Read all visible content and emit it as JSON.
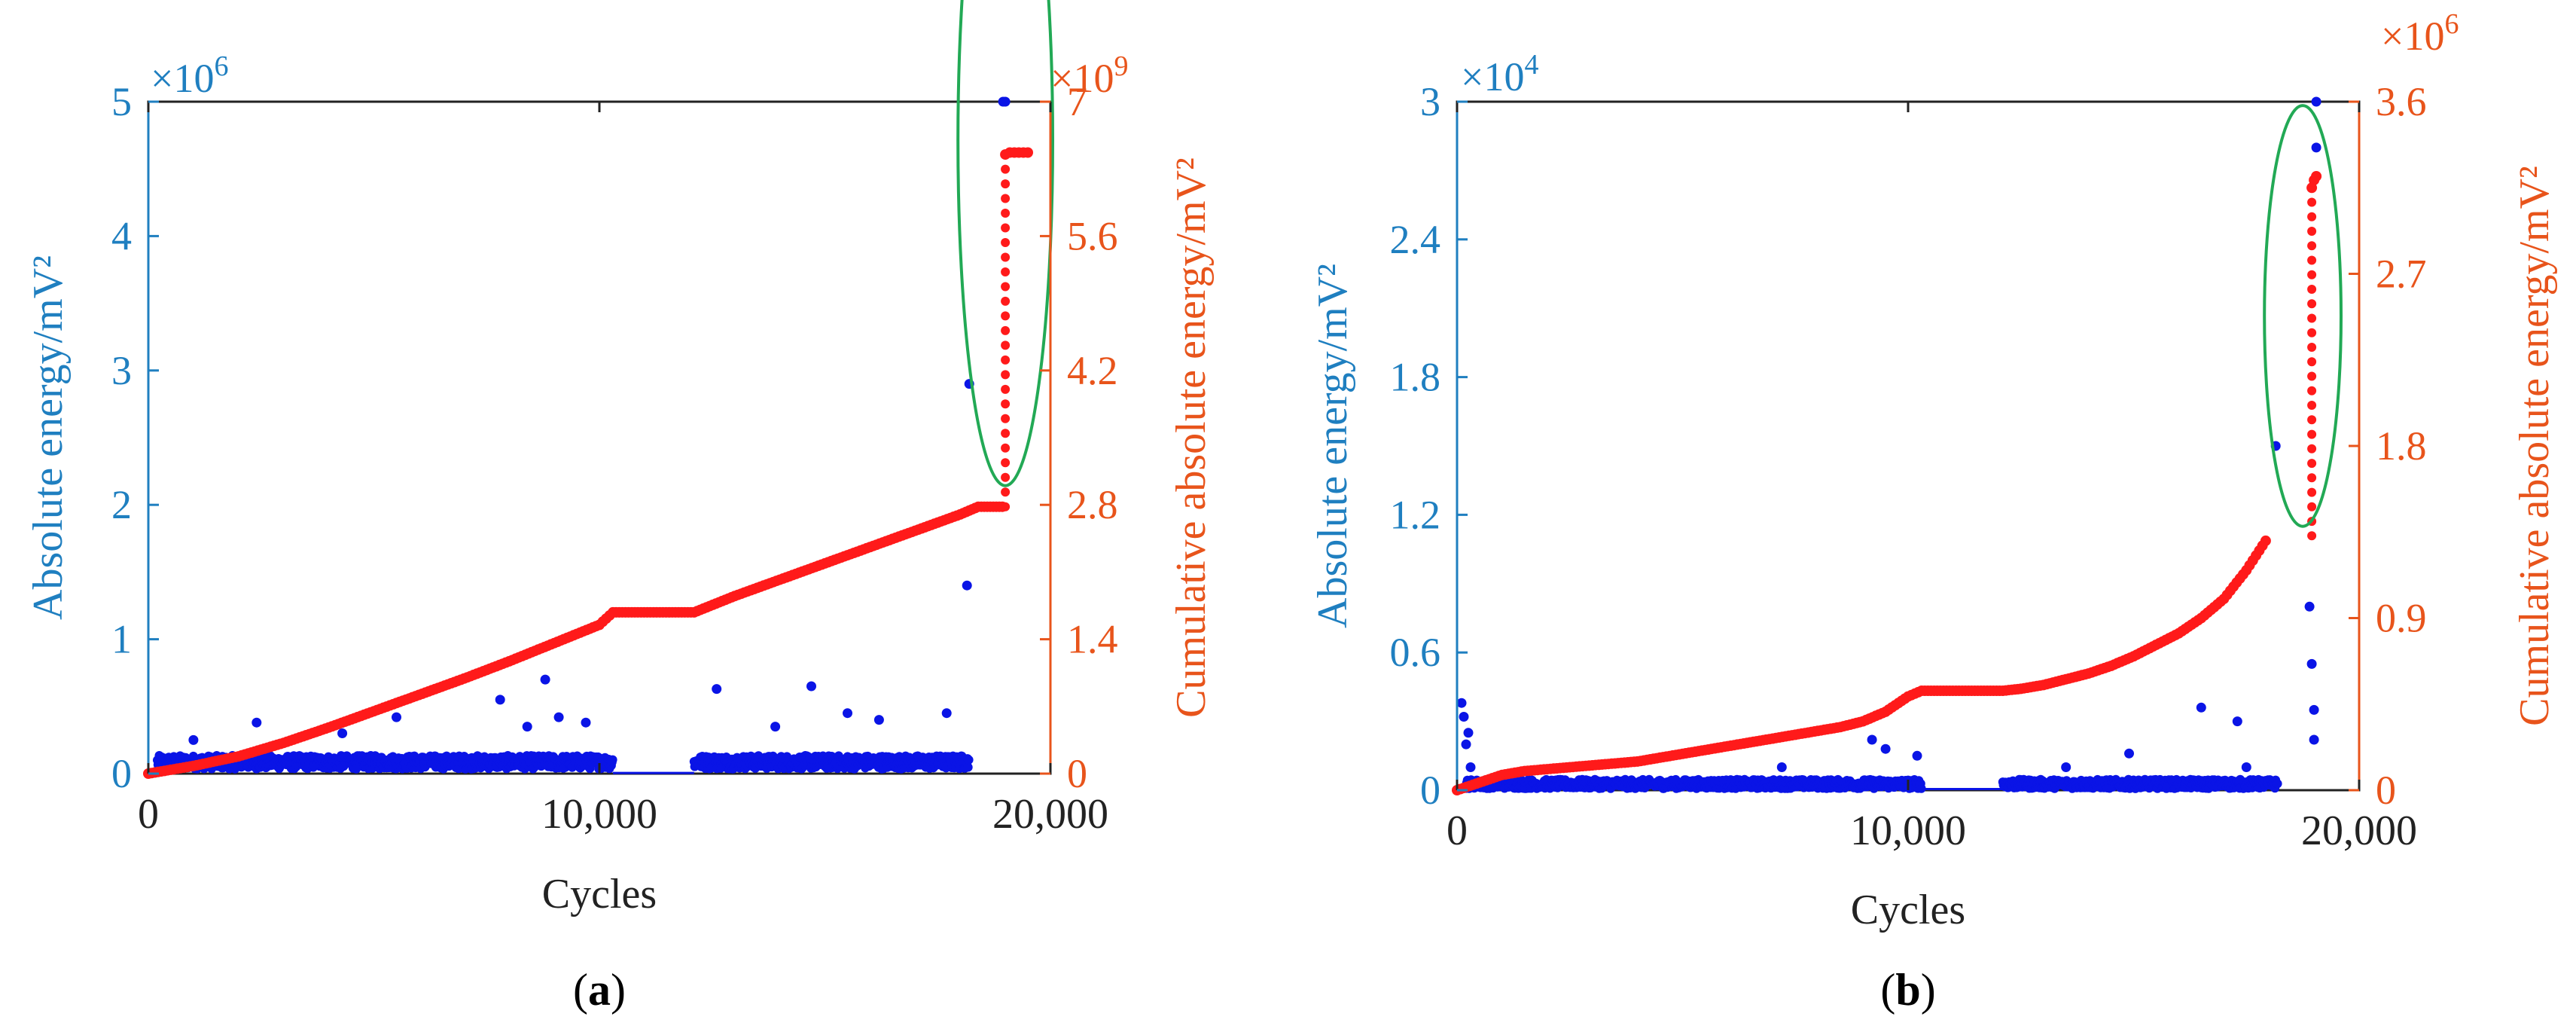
{
  "colors": {
    "left_axis": "#1f7fc0",
    "right_axis": "#e8541b",
    "scatter": "#0a14e6",
    "cumulative": "#ff1a1a",
    "ellipse": "#22a955",
    "axis_line": "#222222"
  },
  "chart_data": [
    {
      "type": "scatter",
      "panel_label": "(a)",
      "panel_letter": "a",
      "xlabel": "Cycles",
      "ylabel_left": "Absolute energy/mV²",
      "ylabel_right": "Cumulative absolute energy/mV²",
      "left_multiplier_base": "×10",
      "left_multiplier_exp": "6",
      "right_multiplier_base": "×10",
      "right_multiplier_exp": "9",
      "xlim": [
        0,
        20000
      ],
      "xticks": [
        0,
        10000,
        20000
      ],
      "xtick_labels": [
        "0",
        "10,000",
        "20,000"
      ],
      "ylim_left": [
        0,
        5
      ],
      "yticks_left": [
        0,
        1,
        2,
        3,
        4,
        5
      ],
      "ytick_labels_left": [
        "0",
        "1",
        "2",
        "3",
        "4",
        "5"
      ],
      "ylim_right": [
        0,
        7
      ],
      "yticks_right": [
        0,
        1.4,
        2.8,
        4.2,
        5.6,
        7
      ],
      "ytick_labels_right": [
        "0",
        "1.4",
        "2.8",
        "4.2",
        "5.6",
        "7"
      ],
      "baseline_band": {
        "x_from": 200,
        "x_to": 18200,
        "gap_from": 10300,
        "gap_to": 12100,
        "level": 0.1,
        "spread": 0.1
      },
      "scatter_outliers": {
        "x": [
          1000,
          2400,
          4300,
          5500,
          7800,
          8400,
          8800,
          9100,
          9700,
          12600,
          13900,
          14700,
          15500,
          16200,
          17700,
          18150,
          18200,
          18950,
          19000
        ],
        "y": [
          0.25,
          0.38,
          0.3,
          0.42,
          0.55,
          0.35,
          0.7,
          0.42,
          0.38,
          0.63,
          0.35,
          0.65,
          0.45,
          0.4,
          0.45,
          1.4,
          2.9,
          5.0,
          5.0
        ]
      },
      "cumulative": {
        "x": [
          0,
          1000,
          2000,
          3000,
          4000,
          5000,
          6000,
          7000,
          8000,
          9000,
          10000,
          10300,
          12100,
          13000,
          14000,
          15000,
          16000,
          17000,
          18000,
          18400,
          19000
        ],
        "y": [
          0,
          0.08,
          0.18,
          0.32,
          0.48,
          0.65,
          0.82,
          0.99,
          1.17,
          1.36,
          1.55,
          1.68,
          1.68,
          1.85,
          2.02,
          2.19,
          2.36,
          2.53,
          2.7,
          2.78,
          2.78
        ]
      },
      "cumulative_jump": {
        "x": 19000,
        "from": 2.78,
        "to": 6.45,
        "points": 24
      },
      "cumulative_top": {
        "x": [
          19000,
          19100,
          19200,
          19300,
          19400,
          19500
        ],
        "y": [
          6.45,
          6.47,
          6.47,
          6.47,
          6.47,
          6.47
        ]
      },
      "highlight_ellipse": {
        "x_center": 19000,
        "x_radius": 1050,
        "y_center": 6.6,
        "y_radius": 7.2,
        "axis": "right"
      }
    },
    {
      "type": "scatter",
      "panel_label": "(b)",
      "panel_letter": "b",
      "xlabel": "Cycles",
      "ylabel_left": "Absolute energy/mV²",
      "ylabel_right": "Cumulative absolute energy/mV²",
      "left_multiplier_base": "×10",
      "left_multiplier_exp": "4",
      "right_multiplier_base": "×10",
      "right_multiplier_exp": "6",
      "xlim": [
        0,
        20000
      ],
      "xticks": [
        0,
        10000,
        20000
      ],
      "xtick_labels": [
        "0",
        "10,000",
        "20,000"
      ],
      "ylim_left": [
        0,
        3
      ],
      "yticks_left": [
        0,
        0.6,
        1.2,
        1.8,
        2.4,
        3
      ],
      "ytick_labels_left": [
        "0",
        "0.6",
        "1.2",
        "1.8",
        "2.4",
        "3"
      ],
      "ylim_right": [
        0,
        3.6
      ],
      "yticks_right": [
        0,
        0.9,
        1.8,
        2.7,
        3.6
      ],
      "ytick_labels_right": [
        "0",
        "0.9",
        "1.8",
        "2.7",
        "3.6"
      ],
      "baseline_band": {
        "x_from": 200,
        "x_to": 18200,
        "gap_from": 10300,
        "gap_to": 12100,
        "level": 0.02,
        "spread": 0.04
      },
      "scatter_outliers": {
        "x": [
          100,
          150,
          200,
          250,
          300,
          7200,
          9200,
          9500,
          10200,
          13500,
          14900,
          16500,
          17300,
          17500,
          18150,
          18900,
          18950,
          19000,
          19050,
          19050,
          19000
        ],
        "y": [
          0.38,
          0.32,
          0.2,
          0.25,
          0.1,
          0.1,
          0.22,
          0.18,
          0.15,
          0.1,
          0.16,
          0.36,
          0.3,
          0.1,
          1.5,
          0.8,
          0.55,
          0.22,
          2.8,
          3.0,
          0.35
        ]
      },
      "cumulative": {
        "x": [
          0,
          500,
          1000,
          1500,
          2000,
          2500,
          3000,
          3500,
          4000,
          4500,
          5000,
          5500,
          6000,
          6500,
          7000,
          7500,
          8000,
          8500,
          9000,
          9500,
          10000,
          10300,
          12100,
          12500,
          13000,
          13500,
          14000,
          14500,
          15000,
          15500,
          16000,
          16500,
          17000,
          17500,
          18000
        ],
        "y": [
          0,
          0.04,
          0.08,
          0.1,
          0.11,
          0.12,
          0.13,
          0.14,
          0.15,
          0.17,
          0.19,
          0.21,
          0.23,
          0.25,
          0.27,
          0.29,
          0.31,
          0.33,
          0.36,
          0.41,
          0.49,
          0.52,
          0.52,
          0.53,
          0.55,
          0.58,
          0.61,
          0.65,
          0.7,
          0.76,
          0.82,
          0.9,
          1.0,
          1.15,
          1.33
        ]
      },
      "cumulative_jump": {
        "x": 18950,
        "from": 1.33,
        "to": 3.15,
        "points": 24
      },
      "cumulative_top": {
        "x": [
          18950,
          19000,
          19050
        ],
        "y": [
          3.15,
          3.19,
          3.21
        ]
      },
      "highlight_ellipse": {
        "x_center": 18750,
        "x_radius": 850,
        "y_center": 2.48,
        "y_radius": 2.2,
        "axis": "right"
      }
    }
  ]
}
